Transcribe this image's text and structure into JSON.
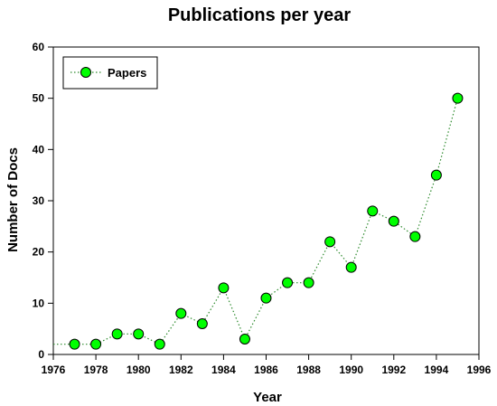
{
  "chart_data": {
    "type": "line",
    "title": "Publications per year",
    "xlabel": "Year",
    "ylabel": "Number of Docs",
    "xlim": [
      1976,
      1996
    ],
    "ylim": [
      0,
      60
    ],
    "x_ticks": [
      1976,
      1978,
      1980,
      1982,
      1984,
      1986,
      1988,
      1990,
      1992,
      1994,
      1996
    ],
    "y_ticks": [
      0,
      10,
      20,
      30,
      40,
      50,
      60
    ],
    "grid": false,
    "legend_position": "top-left",
    "series": [
      {
        "name": "Papers",
        "marker_color": "#00ff00",
        "line_color": "#2e8b2e",
        "line_style": "dotted",
        "x": [
          1977,
          1978,
          1979,
          1980,
          1981,
          1982,
          1983,
          1984,
          1985,
          1986,
          1987,
          1988,
          1989,
          1990,
          1991,
          1992,
          1993,
          1994,
          1995
        ],
        "y": [
          2,
          2,
          4,
          4,
          2,
          8,
          6,
          13,
          3,
          11,
          14,
          14,
          22,
          17,
          28,
          26,
          23,
          35,
          50
        ]
      }
    ]
  }
}
